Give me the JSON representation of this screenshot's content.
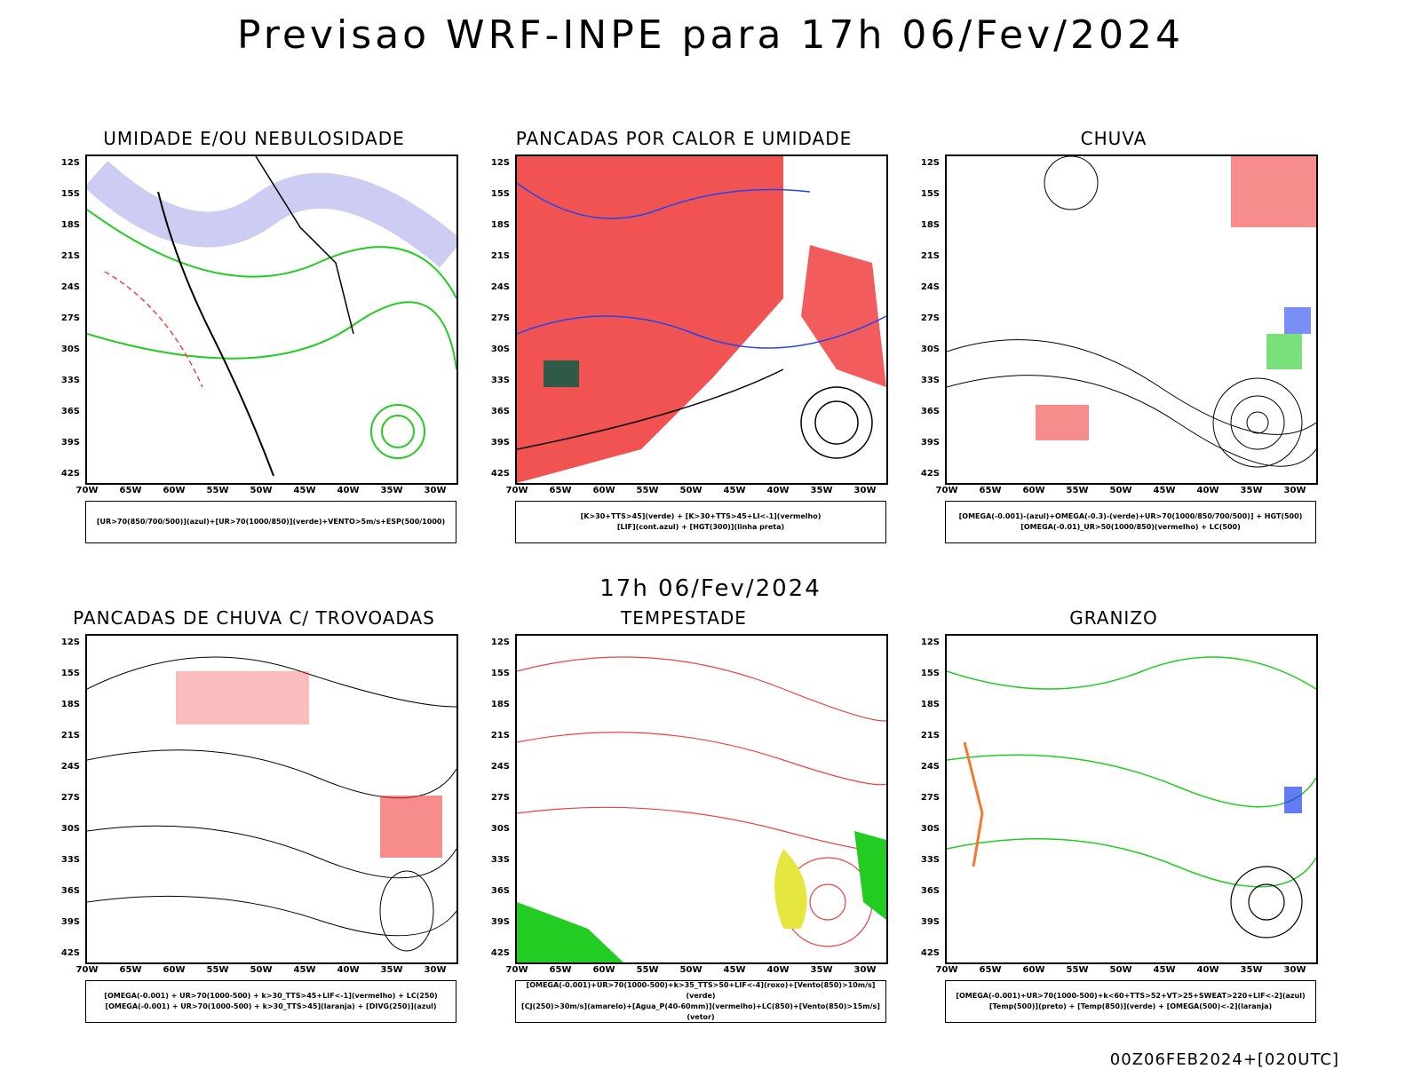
{
  "main_title": "Previsao WRF-INPE  para 17h 06/Fev/2024",
  "mid_date": "17h 06/Fev/2024",
  "run_stamp": "00Z06FEB2024+[020UTC]",
  "lat_labels": [
    "12S",
    "15S",
    "18S",
    "21S",
    "24S",
    "27S",
    "30S",
    "33S",
    "36S",
    "39S",
    "42S"
  ],
  "lon_labels": [
    "70W",
    "65W",
    "60W",
    "55W",
    "50W",
    "45W",
    "40W",
    "35W",
    "30W"
  ],
  "panels": [
    {
      "title": "UMIDADE E/OU NEBULOSIDADE",
      "legend_line1": "[UR>70(850/700/500)](azul)+[UR>70(1000/850)](verde)+VENTO>5m/s+ESP(500/1000)",
      "legend_line2": ""
    },
    {
      "title": "PANCADAS POR CALOR E UMIDADE",
      "legend_line1": "[K>30+TTS>45](verde) + [K>30+TTS>45+LI<-1](vermelho)",
      "legend_line2": "[LIF](cont.azul) + [HGT(300)](linha preta)"
    },
    {
      "title": "CHUVA",
      "legend_line1": "[OMEGA(-0.001)-(azul)+OMEGA(-0.3)-(verde)+UR>70(1000/850/700/500)] + HGT(500)",
      "legend_line2": "[OMEGA(-0.01)_UR>50(1000/850)(vermelho) + LC(500)"
    },
    {
      "title": "PANCADAS DE CHUVA C/ TROVOADAS",
      "legend_line1": "[OMEGA(-0.001) + UR>70(1000-500) + k>30_TTS>45+LIF<-1](vermelho) + LC(250)",
      "legend_line2": "[OMEGA(-0.001) + UR>70(1000-500) + k>30_TTS>45](laranja) + [DIVG(250)](azul)"
    },
    {
      "title": "TEMPESTADE",
      "legend_line1": "[OMEGA(-0.001)+UR>70(1000-500)+k>35_TTS>50+LIF<-4](roxo)+[Vento(850)>10m/s](verde)",
      "legend_line2": "[CJ(250)>30m/s](amarelo)+[Agua_P(40-60mm)](vermelho)+LC(850)+[Vento(850)>15m/s](vetor)"
    },
    {
      "title": "GRANIZO",
      "legend_line1": "[OMEGA(-0.001)+UR>70(1000-500)+k<60+TTS>52+VT>25+SWEAT>220+LIF<-2](azul)",
      "legend_line2": "[Temp(500)](preto) + [Temp(850)](verde) + [OMEGA(500)<-2](laranja)"
    }
  ],
  "colors": {
    "red": "#f04040",
    "green": "#22cc22",
    "blue": "#2244ee",
    "lavender": "#b8b8f0",
    "darkgreen": "#2f5a48",
    "yellow": "#e6e640",
    "orange": "#f07a30"
  }
}
